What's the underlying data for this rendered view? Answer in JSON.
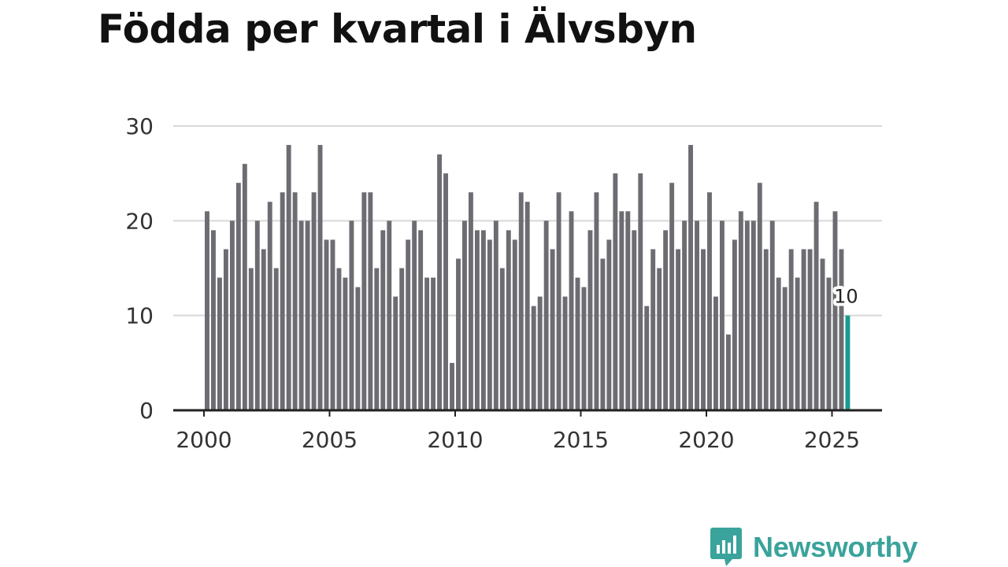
{
  "title": "Födda per kvartal i Älvsbyn",
  "brand": {
    "name": "Newsworthy",
    "icon": "bar-chart-speech-bubble-icon",
    "color": "#3aa39b"
  },
  "chart_data": {
    "type": "bar",
    "title": "Födda per kvartal i Älvsbyn",
    "xlabel": "",
    "ylabel": "",
    "ylim": [
      0,
      30
    ],
    "yticks": [
      0,
      10,
      20,
      30
    ],
    "xticks": [
      "2000",
      "2005",
      "2010",
      "2015",
      "2020",
      "2025"
    ],
    "grid": true,
    "bar_color": "#6d6c72",
    "highlight_color": "#1a9a8f",
    "start": "2000 Q1",
    "end": "2025 Q3",
    "values": [
      21,
      19,
      14,
      17,
      20,
      24,
      26,
      15,
      20,
      17,
      22,
      15,
      23,
      28,
      23,
      20,
      20,
      23,
      28,
      18,
      18,
      15,
      14,
      20,
      13,
      23,
      23,
      15,
      19,
      20,
      12,
      15,
      18,
      20,
      19,
      14,
      14,
      27,
      25,
      5,
      16,
      20,
      23,
      19,
      19,
      18,
      20,
      15,
      19,
      18,
      23,
      22,
      11,
      12,
      20,
      17,
      23,
      12,
      21,
      14,
      13,
      19,
      23,
      16,
      18,
      25,
      21,
      21,
      19,
      25,
      11,
      17,
      15,
      19,
      24,
      17,
      20,
      28,
      20,
      17,
      23,
      12,
      20,
      8,
      18,
      21,
      20,
      20,
      24,
      17,
      20,
      14,
      13,
      17,
      14,
      17,
      17,
      22,
      16,
      14,
      21,
      17,
      10
    ],
    "highlight": {
      "label": "10",
      "value": 10
    }
  }
}
